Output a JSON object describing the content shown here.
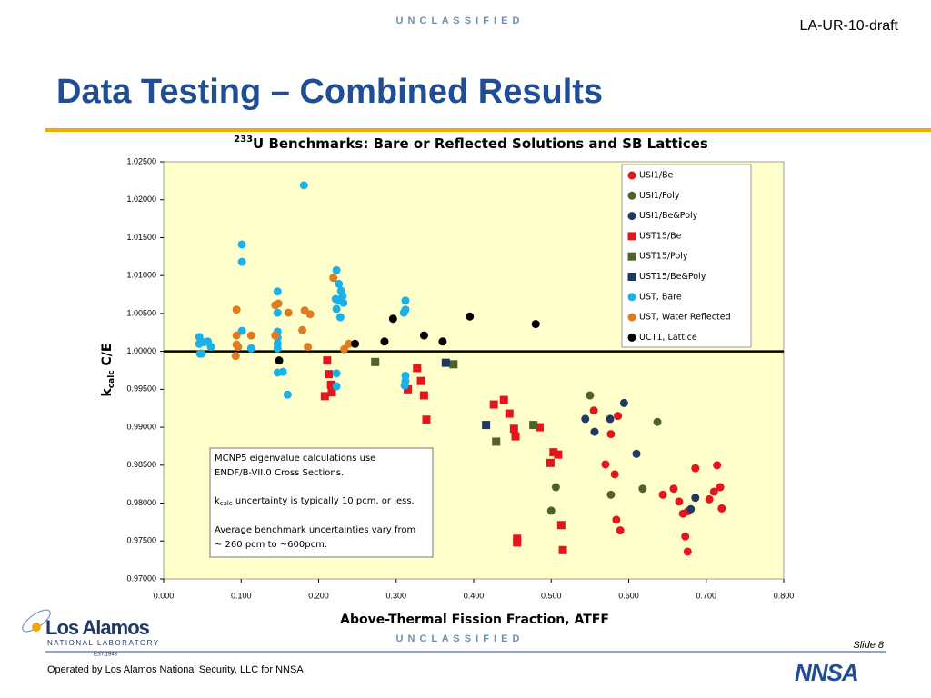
{
  "header": {
    "classification": "U N C L A S S I F I E D",
    "doc_id": "LA-UR-10-draft",
    "title": "Data Testing – Combined Results"
  },
  "footer": {
    "classification": "U N C L A S S I F I E D",
    "slide": "Slide 8",
    "operator": "Operated by Los Alamos National Security, LLC for NNSA",
    "logo": "Los Alamos",
    "logo_sub": "NATIONAL LABORATORY",
    "est": "EST.1943",
    "nnsa": "NNSA"
  },
  "chart_data": {
    "type": "scatter",
    "title": [
      "233",
      "U Benchmarks:  Bare or Reflected Solutions and SB Lattices"
    ],
    "xlabel": "Above-Thermal Fission Fraction, ATFF",
    "ylabel": [
      "k",
      "calc",
      " C/E"
    ],
    "xlim": [
      0,
      0.8
    ],
    "ylim": [
      0.97,
      1.025
    ],
    "xticks": [
      {
        "value": 0,
        "label": "0.000"
      },
      {
        "value": 0.1,
        "label": "0.100"
      },
      {
        "value": 0.2,
        "label": "0.200"
      },
      {
        "value": 0.3,
        "label": "0.300"
      },
      {
        "value": 0.4,
        "label": "0.400"
      },
      {
        "value": 0.5,
        "label": "0.500"
      },
      {
        "value": 0.6,
        "label": "0.600"
      },
      {
        "value": 0.7,
        "label": "0.700"
      },
      {
        "value": 0.8,
        "label": "0.800"
      }
    ],
    "yticks": [
      {
        "value": 0.97,
        "label": "0.97000"
      },
      {
        "value": 0.975,
        "label": "0.97500"
      },
      {
        "value": 0.98,
        "label": "0.98000"
      },
      {
        "value": 0.985,
        "label": "0.98500"
      },
      {
        "value": 0.99,
        "label": "0.99000"
      },
      {
        "value": 0.995,
        "label": "0.99500"
      },
      {
        "value": 1,
        "label": "1.00000"
      },
      {
        "value": 1.005,
        "label": "1.00500"
      },
      {
        "value": 1.01,
        "label": "1.01000"
      },
      {
        "value": 1.015,
        "label": "1.01500"
      },
      {
        "value": 1.02,
        "label": "1.02000"
      },
      {
        "value": 1.025,
        "label": "1.02500"
      }
    ],
    "grid": false,
    "hline": 1,
    "legend": "top-right",
    "background": "#ffffcc",
    "series": [
      {
        "name": "USI1/Be",
        "color": "#e8141b",
        "marker": "circle",
        "x": [
          0.555,
          0.586,
          0.577,
          0.57,
          0.582,
          0.644,
          0.658,
          0.665,
          0.67,
          0.676,
          0.686,
          0.714,
          0.718,
          0.71,
          0.704,
          0.72,
          0.584,
          0.589,
          0.673,
          0.676
        ],
        "y": [
          0.9922,
          0.9915,
          0.9891,
          0.9851,
          0.9838,
          0.9811,
          0.9819,
          0.9802,
          0.9786,
          0.9789,
          0.9846,
          0.985,
          0.9821,
          0.9815,
          0.9805,
          0.9793,
          0.9778,
          0.9764,
          0.9756,
          0.9736
        ]
      },
      {
        "name": "USI1/Poly",
        "color": "#4f6228",
        "marker": "circle",
        "x": [
          0.55,
          0.637,
          0.618,
          0.506,
          0.5,
          0.577
        ],
        "y": [
          0.9942,
          0.9907,
          0.9819,
          0.9821,
          0.979,
          0.9811
        ]
      },
      {
        "name": "USI1/Be&Poly",
        "color": "#1f3864",
        "marker": "circle",
        "x": [
          0.594,
          0.544,
          0.556,
          0.576,
          0.61,
          0.686,
          0.68
        ],
        "y": [
          0.9932,
          0.9911,
          0.9894,
          0.9911,
          0.9865,
          0.9807,
          0.9792
        ]
      },
      {
        "name": "UST15/Be",
        "color": "#e8141b",
        "marker": "square",
        "x": [
          0.211,
          0.213,
          0.216,
          0.217,
          0.208,
          0.315,
          0.327,
          0.332,
          0.336,
          0.339,
          0.426,
          0.439,
          0.446,
          0.452,
          0.454,
          0.485,
          0.503,
          0.509,
          0.499,
          0.513,
          0.456,
          0.456,
          0.515
        ],
        "y": [
          0.9988,
          0.997,
          0.9956,
          0.9946,
          0.9941,
          0.995,
          0.9978,
          0.9961,
          0.9942,
          0.991,
          0.993,
          0.9936,
          0.9918,
          0.9898,
          0.9888,
          0.99,
          0.9867,
          0.9864,
          0.9853,
          0.9771,
          0.9753,
          0.9748,
          0.9738
        ]
      },
      {
        "name": "UST15/Poly",
        "color": "#4f6228",
        "marker": "square",
        "x": [
          0.273,
          0.374,
          0.429,
          0.477
        ],
        "y": [
          0.9986,
          0.9983,
          0.9881,
          0.9903
        ]
      },
      {
        "name": "UST15/Be&Poly",
        "color": "#1f3864",
        "marker": "square",
        "x": [
          0.364,
          0.416
        ],
        "y": [
          0.9985,
          0.9903
        ]
      },
      {
        "name": "UST, Bare",
        "color": "#1ab0e8",
        "marker": "circle",
        "x": [
          0.181,
          0.101,
          0.101,
          0.147,
          0.147,
          0.147,
          0.147,
          0.147,
          0.147,
          0.147,
          0.154,
          0.16,
          0.101,
          0.113,
          0.046,
          0.046,
          0.047,
          0.052,
          0.057,
          0.061,
          0.049,
          0.223,
          0.226,
          0.229,
          0.231,
          0.226,
          0.232,
          0.222,
          0.223,
          0.228,
          0.223,
          0.223,
          0.312,
          0.312,
          0.31,
          0.312,
          0.312,
          0.311
        ],
        "y": [
          1.0219,
          1.0141,
          1.0118,
          1.0079,
          1.0051,
          1.0026,
          1.0018,
          1.001,
          1.0004,
          0.9972,
          0.9973,
          0.9943,
          1.0027,
          1.0004,
          1.0019,
          1.001,
          0.9997,
          1.0012,
          1.0013,
          1.0006,
          0.9997,
          1.0107,
          1.0089,
          1.008,
          1.0073,
          1.0067,
          1.0064,
          1.0069,
          1.0056,
          1.0045,
          0.9971,
          0.9954,
          1.0067,
          1.0055,
          1.0051,
          0.9968,
          0.9961,
          0.9955
        ]
      },
      {
        "name": "UST, Water Reflected",
        "color": "#e07b20",
        "marker": "circle",
        "x": [
          0.094,
          0.094,
          0.094,
          0.096,
          0.093,
          0.113,
          0.144,
          0.148,
          0.144,
          0.161,
          0.182,
          0.189,
          0.179,
          0.186,
          0.219,
          0.233,
          0.239
        ],
        "y": [
          1.0055,
          1.0021,
          1.0009,
          1.0006,
          0.9994,
          1.0021,
          1.0061,
          1.0063,
          1.0021,
          1.0051,
          1.0054,
          1.0049,
          1.0028,
          1.0006,
          1.0097,
          1.0003,
          1.001
        ]
      },
      {
        "name": "UCT1, Lattice",
        "color": "#000000",
        "marker": "circle",
        "x": [
          0.149,
          0.247,
          0.285,
          0.296,
          0.336,
          0.36,
          0.395,
          0.48
        ],
        "y": [
          0.9988,
          1.001,
          1.0013,
          1.0043,
          1.0021,
          1.0013,
          1.0046,
          1.0036
        ]
      }
    ],
    "annotation": [
      "MCNP5 eigenvalue calculations use",
      "ENDF/B-VII.0 Cross Sections.",
      [
        "k",
        "calc",
        " uncertainty is typically 10 pcm, or less."
      ],
      "Average benchmark uncertainties vary from",
      "~ 260 pcm to ~600pcm."
    ]
  }
}
